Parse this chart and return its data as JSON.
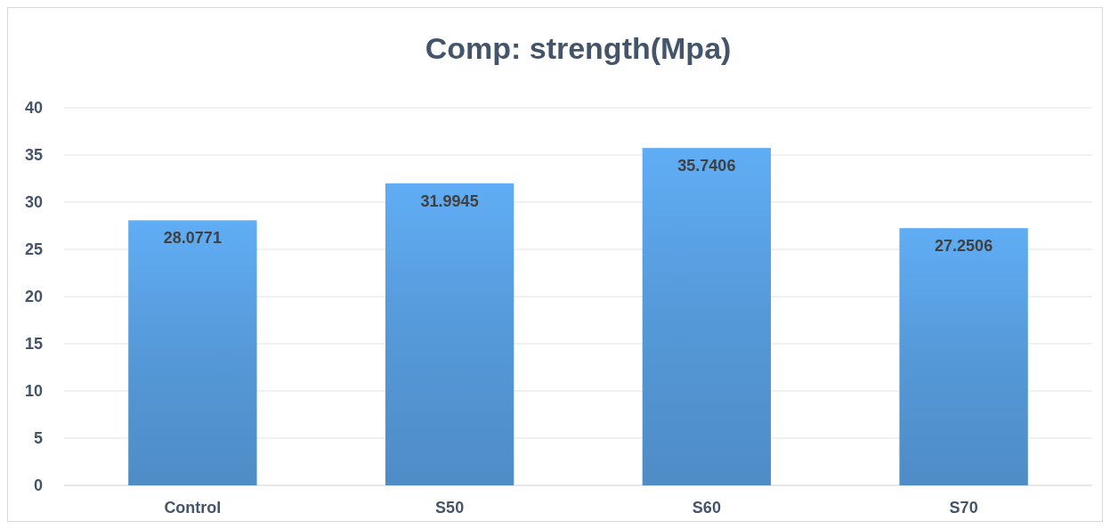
{
  "chart_data": {
    "type": "bar",
    "title": "Comp: strength(Mpa)",
    "categories": [
      "Control",
      "S50",
      "S60",
      "S70"
    ],
    "values": [
      28.0771,
      31.9945,
      35.7406,
      27.2506
    ],
    "color": "#5599d8",
    "ylim": [
      0,
      40
    ],
    "yticks": [
      0,
      5,
      10,
      15,
      20,
      25,
      30,
      35,
      40
    ],
    "grid": "y",
    "data_labels": true
  }
}
